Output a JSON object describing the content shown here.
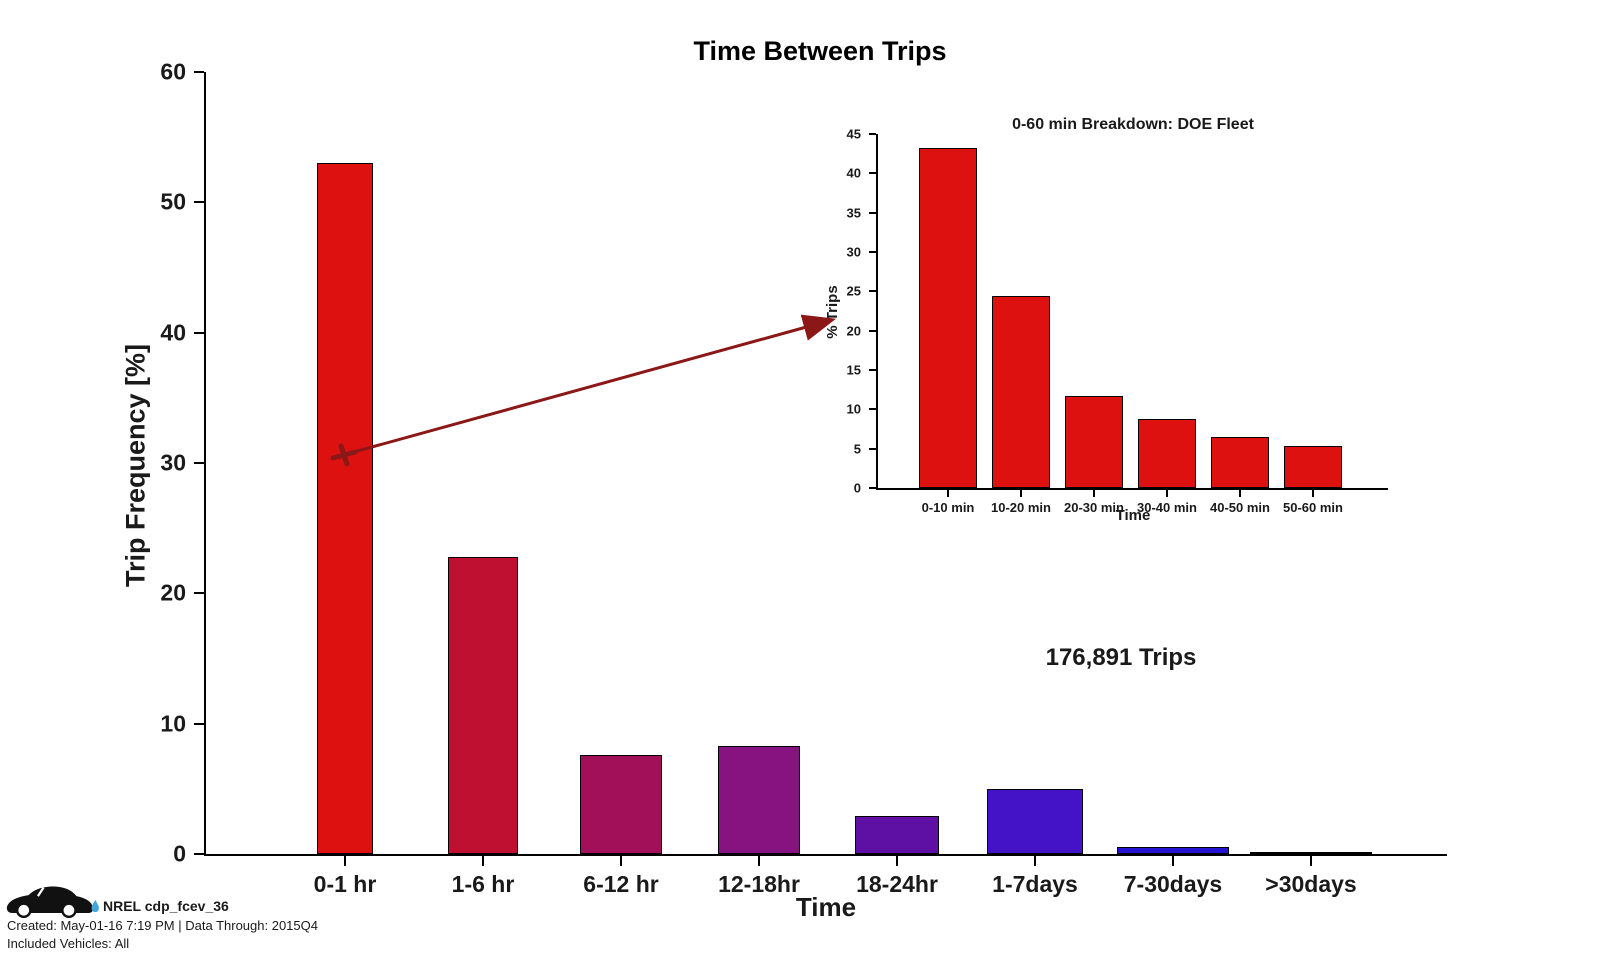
{
  "chart_data": [
    {
      "id": "main",
      "type": "bar",
      "title": "Time Between Trips",
      "xlabel": "Time",
      "ylabel": "Trip Frequency [%]",
      "ylim": [
        0,
        60
      ],
      "yticks": [
        0,
        10,
        20,
        30,
        40,
        50,
        60
      ],
      "categories": [
        "0-1 hr",
        "1-6 hr",
        "6-12 hr",
        "12-18hr",
        "18-24hr",
        "1-7days",
        "7-30days",
        ">30days"
      ],
      "values": [
        53.0,
        22.8,
        7.6,
        8.3,
        2.9,
        5.0,
        0.5,
        0.1
      ],
      "bar_colors": [
        "#DE1111",
        "#C01031",
        "#A11058",
        "#871380",
        "#5E10A4",
        "#4413C8",
        "#2312D2",
        "#0F10E0"
      ],
      "bar_edge_color": "#000000",
      "annotation": "176,891 Trips",
      "grid": false,
      "legend": "none"
    },
    {
      "id": "inset",
      "type": "bar",
      "title": "0-60 min Breakdown: DOE Fleet",
      "xlabel": "Time",
      "ylabel": "% Trips",
      "ylim": [
        0,
        45
      ],
      "yticks": [
        0,
        5,
        10,
        15,
        20,
        25,
        30,
        35,
        40,
        45
      ],
      "categories": [
        "0-10 min",
        "10-20 min",
        "20-30 min",
        "30-40 min",
        "40-50 min",
        "50-60 min"
      ],
      "values": [
        43.2,
        24.4,
        11.7,
        8.8,
        6.5,
        5.4
      ],
      "bar_colors": [
        "#DE1111",
        "#DE1111",
        "#DE1111",
        "#DE1111",
        "#DE1111",
        "#DE1111"
      ],
      "bar_edge_color": "#000000",
      "grid": false,
      "legend": "none"
    }
  ],
  "arrow": {
    "color": "#8B1717",
    "description": "callout arrow from 0-1 hr bar to inset chart"
  },
  "footer": {
    "logo_icon": "nrel-car-icon",
    "logo_label": "NREL cdp_fcev_36",
    "created": "Created: May-01-16  7:19 PM | Data Through: 2015Q4",
    "included": "Included Vehicles: All",
    "car_color": "#111111",
    "droplet_color": "#3FA9DC"
  },
  "text_color": "#1a1a1a"
}
